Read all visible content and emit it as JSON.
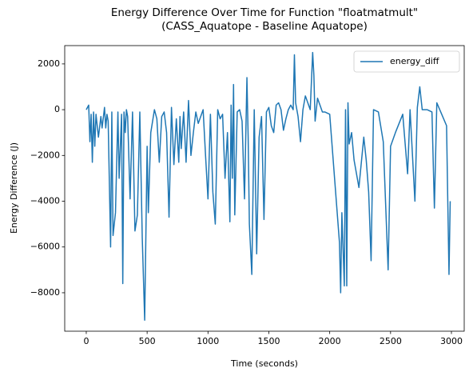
{
  "chart_data": {
    "type": "line",
    "title": "Energy Difference Over Time for Function \"floatmatmult\"",
    "subtitle": "(CASS_Aquatope - Baseline Aquatope)",
    "xlabel": "Time (seconds)",
    "ylabel": "Energy Difference (J)",
    "x": [
      0,
      20,
      30,
      40,
      50,
      60,
      70,
      80,
      100,
      120,
      130,
      150,
      160,
      170,
      180,
      200,
      210,
      220,
      240,
      260,
      270,
      290,
      300,
      310,
      320,
      330,
      340,
      360,
      380,
      400,
      420,
      440,
      460,
      480,
      500,
      510,
      530,
      560,
      580,
      600,
      620,
      640,
      660,
      680,
      700,
      720,
      740,
      760,
      770,
      780,
      800,
      820,
      840,
      860,
      880,
      900,
      920,
      960,
      980,
      1000,
      1020,
      1040,
      1060,
      1080,
      1100,
      1120,
      1140,
      1160,
      1180,
      1190,
      1200,
      1210,
      1220,
      1240,
      1260,
      1280,
      1300,
      1320,
      1330,
      1340,
      1360,
      1380,
      1400,
      1420,
      1440,
      1460,
      1480,
      1500,
      1520,
      1540,
      1560,
      1580,
      1600,
      1620,
      1640,
      1660,
      1680,
      1700,
      1710,
      1720,
      1740,
      1760,
      1780,
      1800,
      1840,
      1860,
      1870,
      1880,
      1900,
      1940,
      1960,
      2000,
      2040,
      2080,
      2090,
      2100,
      2120,
      2130,
      2140,
      2150,
      2160,
      2180,
      2200,
      2240,
      2280,
      2300,
      2320,
      2340,
      2360,
      2400,
      2440,
      2480,
      2500,
      2540,
      2600,
      2640,
      2660,
      2700,
      2720,
      2740,
      2760,
      2800,
      2840,
      2860,
      2880,
      2920,
      2960,
      2970,
      2980,
      2990
    ],
    "series": [
      {
        "name": "energy_diff",
        "color": "#1f77b4",
        "values": [
          0,
          200,
          -1400,
          -200,
          -2300,
          -100,
          -1600,
          -200,
          -1200,
          -300,
          -800,
          100,
          -800,
          -200,
          -500,
          -6000,
          -100,
          -5500,
          -4500,
          -100,
          -3000,
          -200,
          -7600,
          -100,
          -1000,
          0,
          -300,
          -3900,
          -100,
          -5300,
          -4600,
          -100,
          -5600,
          -9200,
          -1600,
          -4500,
          -1000,
          0,
          -400,
          -2300,
          -300,
          -100,
          -1000,
          -4700,
          100,
          -2400,
          -400,
          -2300,
          -300,
          -1700,
          -100,
          -2300,
          400,
          -2000,
          -1000,
          -100,
          -600,
          0,
          -2000,
          -3900,
          -200,
          -3600,
          -5000,
          0,
          -400,
          -200,
          -3000,
          -1000,
          -4900,
          200,
          -3000,
          1100,
          -4600,
          -100,
          0,
          -500,
          -3900,
          1400,
          -1200,
          -5000,
          -7200,
          0,
          -6300,
          -1200,
          -300,
          -4800,
          -100,
          100,
          -700,
          -1000,
          200,
          300,
          0,
          -900,
          -400,
          0,
          200,
          0,
          2400,
          300,
          -300,
          -1400,
          0,
          600,
          0,
          2500,
          1500,
          -500,
          500,
          -100,
          -100,
          -200,
          -3000,
          -5800,
          -8000,
          -4500,
          -7700,
          0,
          -7700,
          300,
          -1500,
          -1000,
          -2200,
          -3400,
          -1200,
          -2200,
          -3600,
          -6600,
          0,
          -100,
          -1400,
          -7000,
          -1600,
          -1000,
          -200,
          -2800,
          0,
          -4000,
          100,
          1000,
          0,
          0,
          -100,
          -4300,
          300,
          -200,
          -700,
          -4000,
          -7200,
          -4000
        ]
      }
    ],
    "xlim": [
      -177,
      3105
    ],
    "ylim": [
      -9680,
      2800
    ],
    "xticks": [
      0,
      500,
      1000,
      1500,
      2000,
      2500,
      3000
    ],
    "yticks": [
      {
        "value": -8000,
        "label": "−8000"
      },
      {
        "value": -6000,
        "label": "−6000"
      },
      {
        "value": -4000,
        "label": "−4000"
      },
      {
        "value": -2000,
        "label": "−2000"
      },
      0,
      2000
    ],
    "legend": "upper right"
  }
}
